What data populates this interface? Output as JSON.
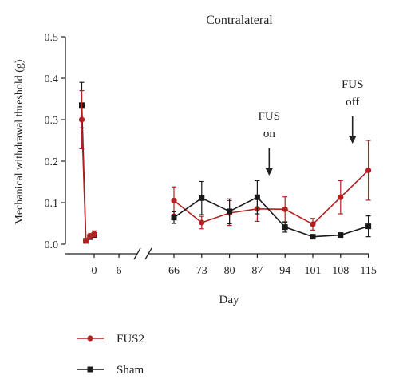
{
  "chart_data": {
    "type": "line",
    "title": "Contralateral",
    "xlabel": "Day",
    "ylabel": "Mechanical withdrawal threshold (g)",
    "ylim": [
      0,
      0.5
    ],
    "yticks": [
      "0.0",
      "0.1",
      "0.2",
      "0.3",
      "0.4",
      "0.5"
    ],
    "axis_break": "between 6 and 66",
    "early_segment": {
      "xticks": [
        "0",
        "6"
      ],
      "x": [
        -3,
        -2,
        -1,
        0
      ],
      "series": [
        {
          "name": "FUS2",
          "values": [
            0.3,
            0.008,
            0.02,
            0.025
          ],
          "err": [
            0.07,
            0.004,
            0.005,
            0.007
          ]
        },
        {
          "name": "Sham",
          "values": [
            0.335,
            0.008,
            0.017,
            0.022
          ],
          "err": [
            0.055,
            0.004,
            0.004,
            0.005
          ]
        }
      ]
    },
    "late_segment": {
      "x": [
        "66",
        "73",
        "80",
        "87",
        "94",
        "101",
        "108",
        "115"
      ],
      "series": [
        {
          "name": "FUS2",
          "values": [
            0.105,
            0.052,
            0.075,
            0.085,
            0.084,
            0.048,
            0.113,
            0.178
          ],
          "err": [
            0.033,
            0.015,
            0.03,
            0.03,
            0.03,
            0.014,
            0.04,
            0.072
          ]
        },
        {
          "name": "Sham",
          "values": [
            0.064,
            0.111,
            0.079,
            0.113,
            0.041,
            0.018,
            0.022,
            0.043
          ],
          "err": [
            0.014,
            0.04,
            0.03,
            0.04,
            0.012,
            0.003,
            0.005,
            0.025
          ]
        }
      ]
    },
    "annotations": [
      {
        "lines": [
          "FUS",
          "on"
        ],
        "at_day": 90
      },
      {
        "lines": [
          "FUS",
          "off"
        ],
        "at_day": 111
      }
    ],
    "legend": {
      "placement": "bottom-left",
      "entries": [
        {
          "label": "FUS2",
          "color": "#b22222",
          "marker": "circle"
        },
        {
          "label": "Sham",
          "color": "#1a1a1a",
          "marker": "square"
        }
      ]
    },
    "colors": {
      "FUS2": "#b22222",
      "Sham": "#1a1a1a"
    }
  }
}
